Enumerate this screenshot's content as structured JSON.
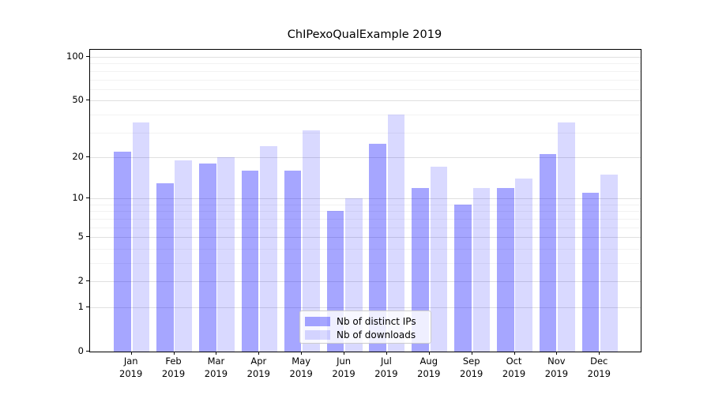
{
  "chart_data": {
    "type": "bar",
    "title": "ChIPexoQualExample 2019",
    "categories": [
      "Jan 2019",
      "Feb 2019",
      "Mar 2019",
      "Apr 2019",
      "May 2019",
      "Jun 2019",
      "Jul 2019",
      "Aug 2019",
      "Sep 2019",
      "Oct 2019",
      "Nov 2019",
      "Dec 2019"
    ],
    "xtick_line1": [
      "Jan",
      "Feb",
      "Mar",
      "Apr",
      "May",
      "Jun",
      "Jul",
      "Aug",
      "Sep",
      "Oct",
      "Nov",
      "Dec"
    ],
    "xtick_line2": "2019",
    "series": [
      {
        "name": "Nb of distinct IPs",
        "color": "rgba(0,0,255,0.35)",
        "color_on_white": "#a6a6f8",
        "values": [
          22,
          13,
          18,
          16,
          16,
          8,
          25,
          12,
          9,
          12,
          21,
          11
        ]
      },
      {
        "name": "Nb of downloads",
        "color": "rgba(0,0,255,0.15)",
        "color_on_white": "#d9d9f8",
        "values": [
          35,
          19,
          20,
          24,
          31,
          10,
          40,
          17,
          12,
          14,
          35,
          15
        ]
      }
    ],
    "yscale": "log1p",
    "ylim": [
      0,
      112
    ],
    "yticks": [
      0,
      1,
      2,
      5,
      10,
      20,
      50,
      100
    ],
    "ytick_labels": [
      "0",
      "1",
      "2",
      "5",
      "10",
      "20",
      "50",
      "100"
    ],
    "minor_yticks": [
      3,
      4,
      6,
      7,
      8,
      9,
      30,
      40,
      60,
      70,
      80,
      90
    ],
    "grid": true,
    "legend_position": "lower-center"
  },
  "colors": {
    "background": "#ffffff",
    "spine": "#000000",
    "grid_major": "#e0e0e0",
    "grid_minor": "#f2f2f2",
    "legend_border": "#cccccc"
  }
}
